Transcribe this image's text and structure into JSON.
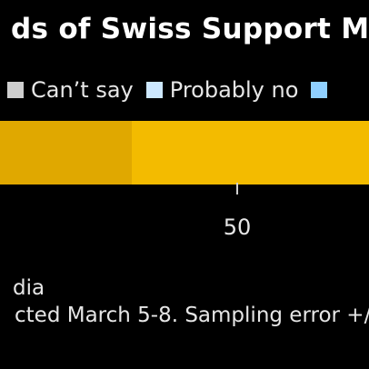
{
  "title": "ds of Swiss Support Mi",
  "colors": {
    "background": "#000000",
    "bar_dark": "#e0a800",
    "bar_light": "#f3bb00",
    "cant_say": "#cfcfcf",
    "probably_no": "#cde8ff",
    "definitely_no": "#8fd0ff",
    "tick": "#d0d0d0"
  },
  "legend": [
    {
      "label": "Can’t say",
      "color": "#cfcfcf"
    },
    {
      "label": "Probably no",
      "color": "#cde8ff"
    },
    {
      "label": "",
      "color": "#8fd0ff"
    }
  ],
  "chart_data": {
    "type": "bar",
    "orientation": "horizontal",
    "stacked": true,
    "xlim": [
      32,
      60
    ],
    "x_ticks": [
      50
    ],
    "segments": [
      {
        "start": 32,
        "end": 42,
        "color": "#e0a800"
      },
      {
        "start": 42,
        "end": 60,
        "color": "#f3bb00"
      }
    ]
  },
  "footnotes": {
    "source": "dia",
    "note": "cted March 5-8. Sampling error +/"
  }
}
